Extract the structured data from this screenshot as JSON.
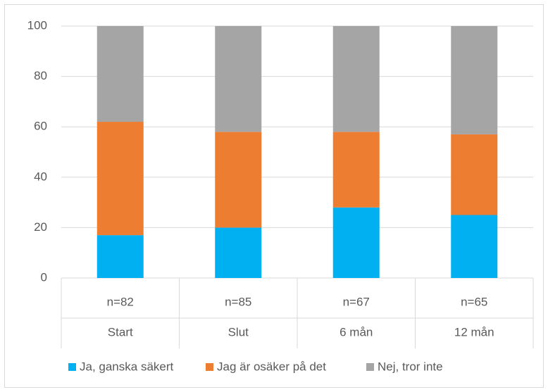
{
  "chart_data": {
    "type": "stacked_bar",
    "categories": [
      "Start",
      "Slut",
      "6 mån",
      "12 mån"
    ],
    "subcategories": [
      "n=82",
      "n=85",
      "n=67",
      "n=65"
    ],
    "series": [
      {
        "name": "Ja, ganska säkert",
        "color": "#00b0f0",
        "values": [
          17,
          20,
          28,
          25
        ]
      },
      {
        "name": "Jag är osäker på det",
        "color": "#ed7d31",
        "values": [
          45,
          38,
          30,
          32
        ]
      },
      {
        "name": "Nej, tror inte",
        "color": "#a5a5a5",
        "values": [
          38,
          42,
          42,
          43
        ]
      }
    ],
    "ylim": [
      0,
      100
    ],
    "yticks": [
      0,
      20,
      40,
      60,
      80,
      100
    ],
    "grid": true,
    "legend": "bottom"
  }
}
